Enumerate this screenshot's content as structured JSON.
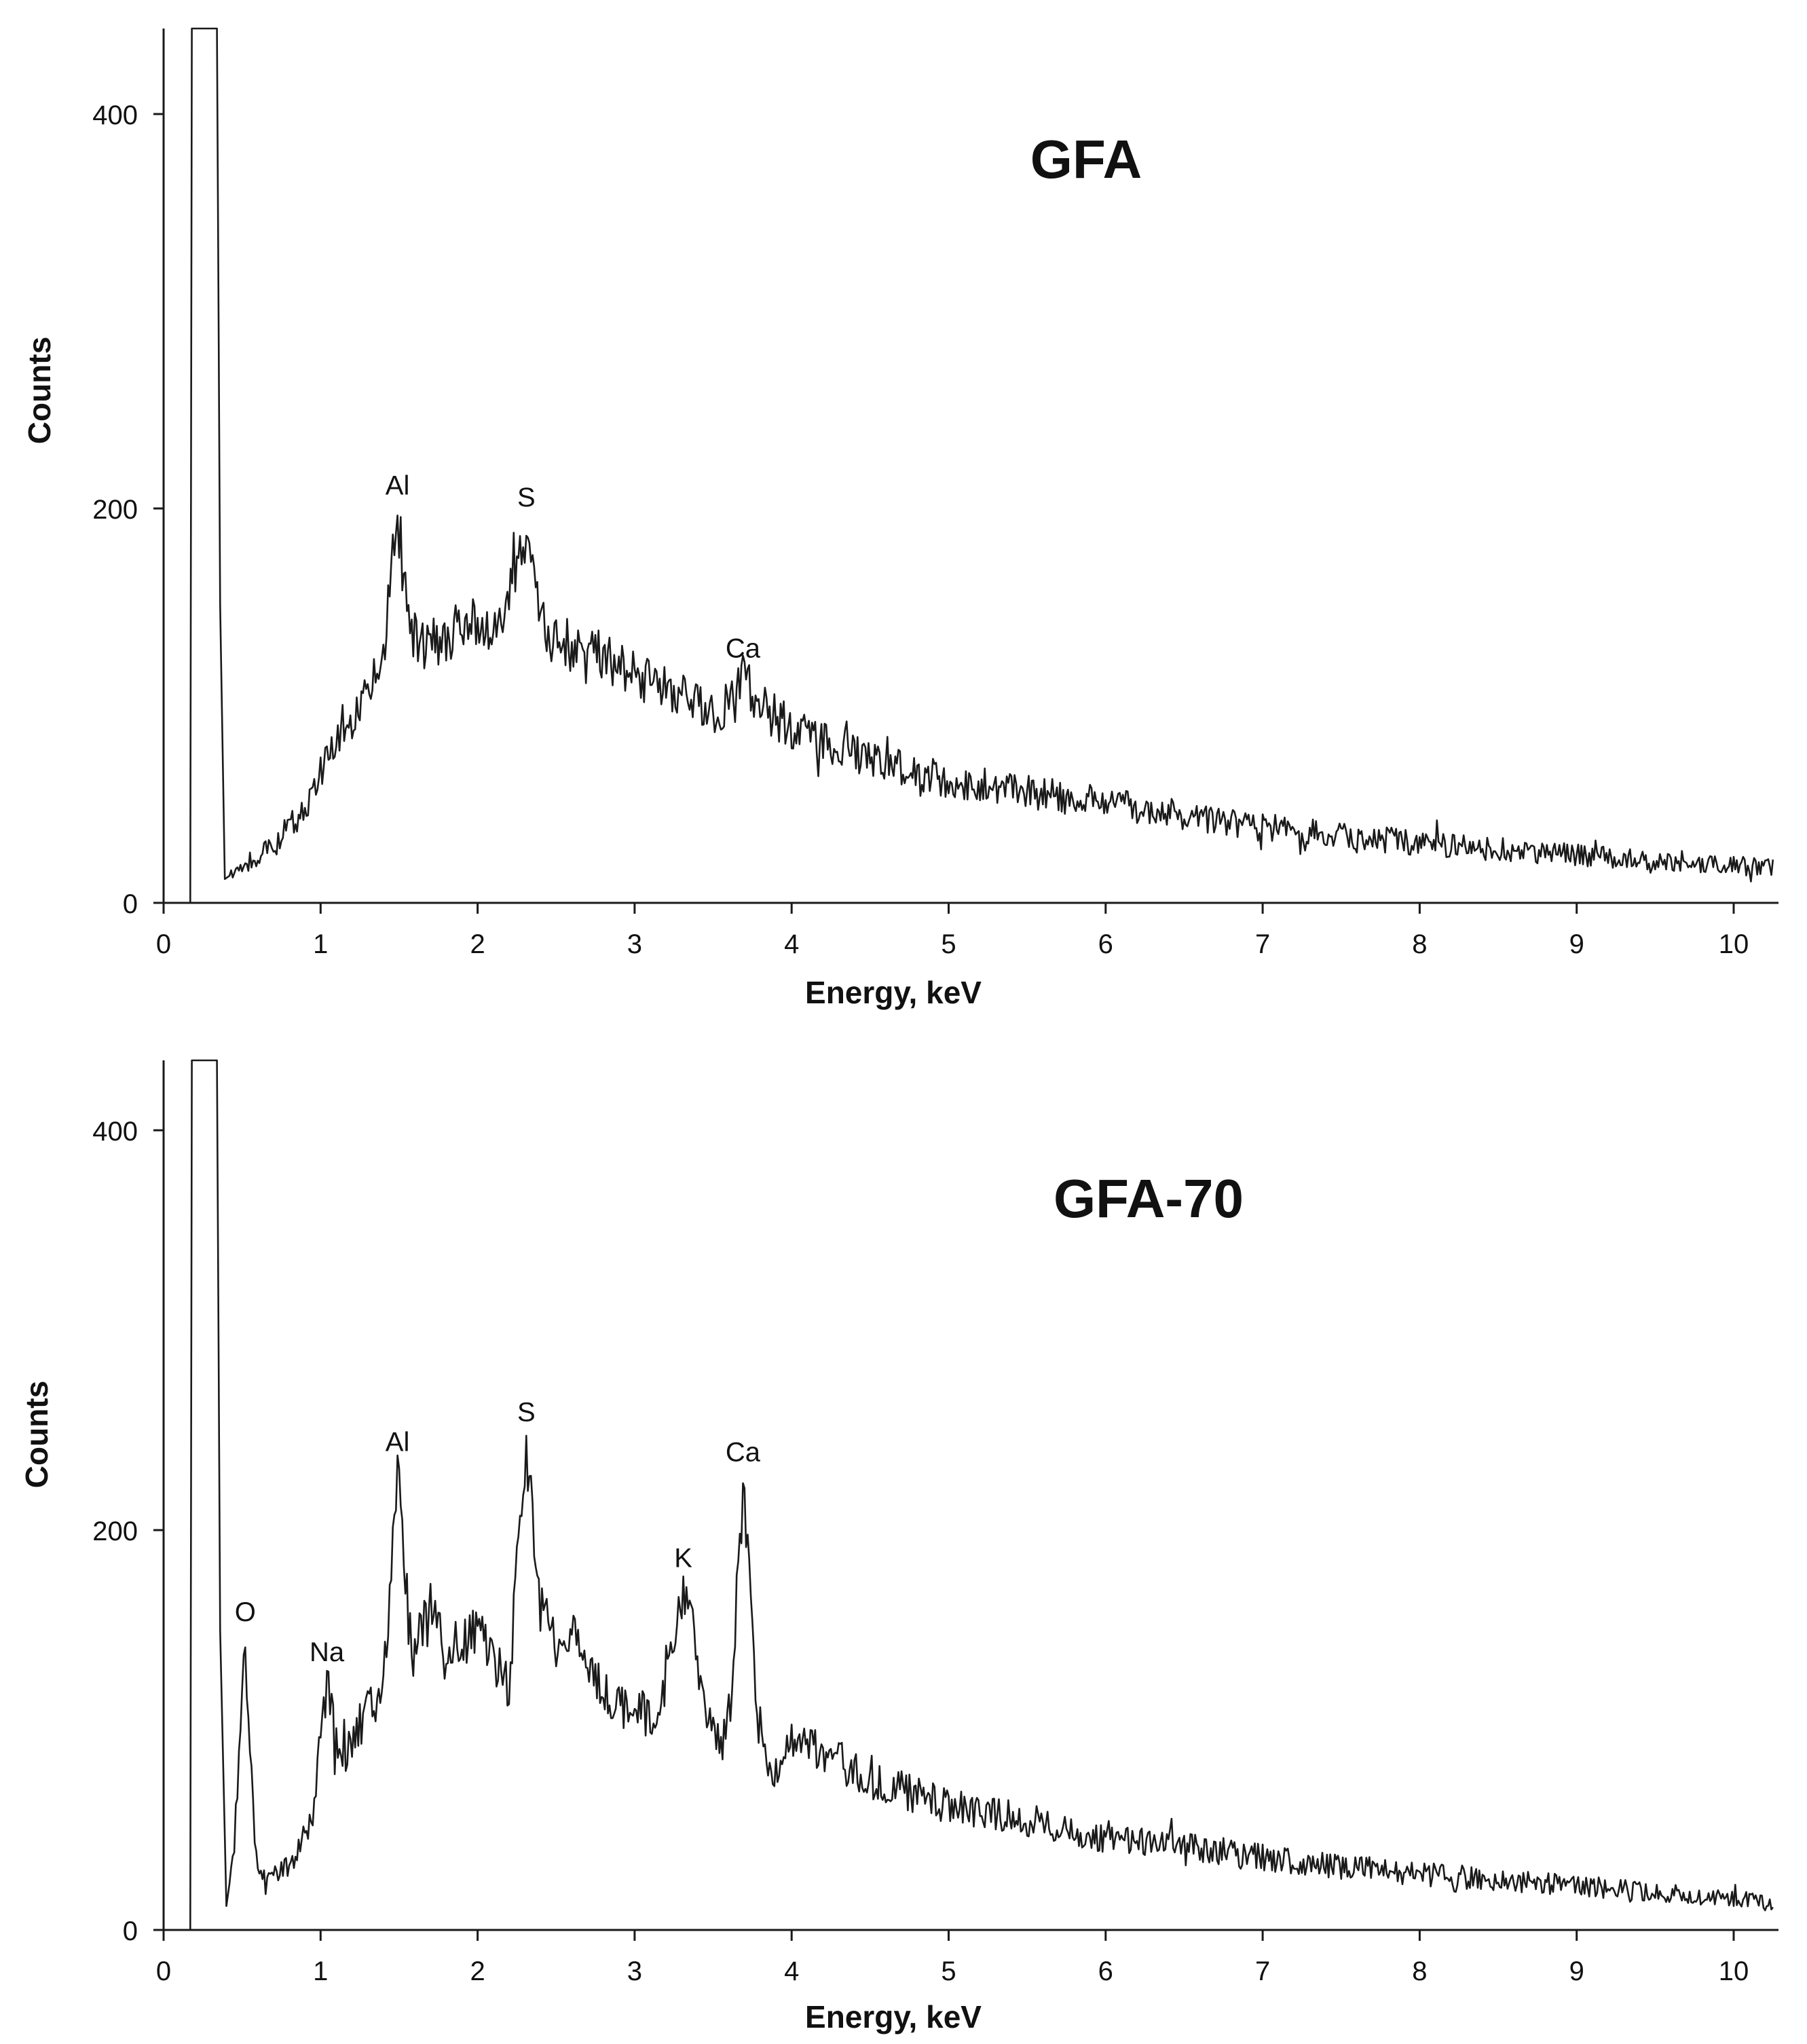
{
  "chart_data": [
    {
      "type": "line",
      "title": "GFA",
      "xlabel": "Energy, keV",
      "ylabel": "Counts",
      "xlim": [
        0,
        10.25
      ],
      "ylim": [
        0,
        440
      ],
      "x_ticks": [
        "0",
        "1",
        "2",
        "3",
        "4",
        "5",
        "6",
        "7",
        "8",
        "9",
        "10"
      ],
      "y_ticks": [
        "0",
        "200",
        "400"
      ],
      "grid": false,
      "legend": "none",
      "line_color": "#1a1a1a",
      "peak_labels": [
        {
          "text": "Al",
          "x": 1.49,
          "y": 196
        },
        {
          "text": "S",
          "x": 2.31,
          "y": 190
        },
        {
          "text": "Ca",
          "x": 3.69,
          "y": 114
        }
      ],
      "spectrum_anchor_points": [
        [
          0.0,
          0
        ],
        [
          0.17,
          0
        ],
        [
          0.18,
          440
        ],
        [
          0.34,
          440
        ],
        [
          0.36,
          150
        ],
        [
          0.39,
          12
        ],
        [
          0.5,
          18
        ],
        [
          0.7,
          28
        ],
        [
          0.9,
          48
        ],
        [
          1.0,
          66
        ],
        [
          1.1,
          80
        ],
        [
          1.2,
          92
        ],
        [
          1.3,
          104
        ],
        [
          1.4,
          125
        ],
        [
          1.49,
          196
        ],
        [
          1.56,
          140
        ],
        [
          1.65,
          128
        ],
        [
          1.8,
          135
        ],
        [
          2.0,
          140
        ],
        [
          2.15,
          142
        ],
        [
          2.23,
          158
        ],
        [
          2.31,
          190
        ],
        [
          2.38,
          158
        ],
        [
          2.45,
          132
        ],
        [
          2.7,
          128
        ],
        [
          2.9,
          118
        ],
        [
          3.1,
          110
        ],
        [
          3.3,
          104
        ],
        [
          3.5,
          93
        ],
        [
          3.6,
          100
        ],
        [
          3.69,
          114
        ],
        [
          3.78,
          100
        ],
        [
          4.0,
          88
        ],
        [
          4.5,
          72
        ],
        [
          5.0,
          62
        ],
        [
          5.5,
          56
        ],
        [
          6.0,
          50
        ],
        [
          6.5,
          44
        ],
        [
          7.0,
          38
        ],
        [
          7.5,
          34
        ],
        [
          8.0,
          30
        ],
        [
          8.5,
          27
        ],
        [
          9.0,
          24
        ],
        [
          9.5,
          22
        ],
        [
          10.0,
          19
        ],
        [
          10.25,
          18
        ]
      ]
    },
    {
      "type": "line",
      "title": "GFA-70",
      "xlabel": "Energy, keV",
      "ylabel": "Counts",
      "xlim": [
        0,
        10.25
      ],
      "ylim": [
        0,
        435
      ],
      "x_ticks": [
        "0",
        "1",
        "2",
        "3",
        "4",
        "5",
        "6",
        "7",
        "8",
        "9",
        "10"
      ],
      "y_ticks": [
        "0",
        "200",
        "400"
      ],
      "grid": false,
      "legend": "none",
      "line_color": "#1a1a1a",
      "peak_labels": [
        {
          "text": "O",
          "x": 0.52,
          "y": 145
        },
        {
          "text": "Na",
          "x": 1.04,
          "y": 125
        },
        {
          "text": "Al",
          "x": 1.49,
          "y": 230
        },
        {
          "text": "S",
          "x": 2.31,
          "y": 245
        },
        {
          "text": "K",
          "x": 3.31,
          "y": 172
        },
        {
          "text": "Ca",
          "x": 3.69,
          "y": 225
        }
      ],
      "spectrum_anchor_points": [
        [
          0.0,
          0
        ],
        [
          0.17,
          0
        ],
        [
          0.18,
          435
        ],
        [
          0.34,
          435
        ],
        [
          0.36,
          150
        ],
        [
          0.4,
          12
        ],
        [
          0.45,
          40
        ],
        [
          0.52,
          145
        ],
        [
          0.58,
          40
        ],
        [
          0.65,
          22
        ],
        [
          0.8,
          32
        ],
        [
          0.95,
          55
        ],
        [
          1.04,
          125
        ],
        [
          1.12,
          85
        ],
        [
          1.2,
          95
        ],
        [
          1.3,
          110
        ],
        [
          1.4,
          120
        ],
        [
          1.49,
          230
        ],
        [
          1.58,
          135
        ],
        [
          1.7,
          160
        ],
        [
          1.85,
          140
        ],
        [
          2.0,
          148
        ],
        [
          2.2,
          122
        ],
        [
          2.31,
          245
        ],
        [
          2.4,
          160
        ],
        [
          2.5,
          140
        ],
        [
          2.6,
          148
        ],
        [
          2.8,
          118
        ],
        [
          3.0,
          110
        ],
        [
          3.15,
          105
        ],
        [
          3.31,
          172
        ],
        [
          3.45,
          115
        ],
        [
          3.55,
          90
        ],
        [
          3.62,
          120
        ],
        [
          3.69,
          225
        ],
        [
          3.78,
          110
        ],
        [
          3.85,
          75
        ],
        [
          4.0,
          98
        ],
        [
          4.5,
          75
        ],
        [
          5.0,
          62
        ],
        [
          5.5,
          55
        ],
        [
          6.0,
          46
        ],
        [
          6.5,
          42
        ],
        [
          7.0,
          36
        ],
        [
          7.5,
          32
        ],
        [
          8.0,
          28
        ],
        [
          8.5,
          25
        ],
        [
          9.0,
          22
        ],
        [
          9.5,
          19
        ],
        [
          10.0,
          16
        ],
        [
          10.25,
          12
        ]
      ]
    }
  ]
}
